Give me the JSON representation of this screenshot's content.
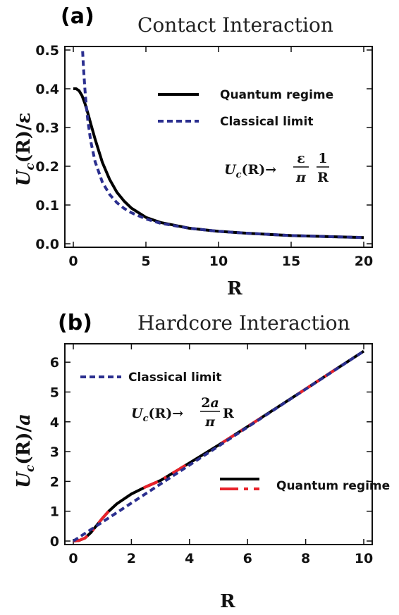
{
  "chart_data": [
    {
      "type": "line",
      "panel_label": "(a)",
      "title": "Contact Interaction",
      "xlabel": "R",
      "ylabel": "U_c(R)/ε",
      "xlim": [
        0,
        20
      ],
      "ylim": [
        0,
        0.5
      ],
      "xticks": [
        "0",
        "5",
        "10",
        "15",
        "20"
      ],
      "yticks": [
        "0.0",
        "0.1",
        "0.2",
        "0.3",
        "0.4",
        "0.5"
      ],
      "legend_position": "top-right",
      "annotation": "U_c(R) → (ε/π)(1/R)",
      "series": [
        {
          "name": "Quantum regime",
          "color": "#000000",
          "style": "solid",
          "x": [
            0,
            0.2,
            0.4,
            0.6,
            0.8,
            1.0,
            1.2,
            1.5,
            2.0,
            2.5,
            3.0,
            3.5,
            4.0,
            5.0,
            6.0,
            8.0,
            10.0,
            12.0,
            15.0,
            18.0,
            20.0
          ],
          "y": [
            0.4,
            0.4,
            0.395,
            0.382,
            0.362,
            0.337,
            0.31,
            0.27,
            0.21,
            0.166,
            0.133,
            0.11,
            0.092,
            0.068,
            0.055,
            0.04,
            0.032,
            0.027,
            0.021,
            0.018,
            0.016
          ]
        },
        {
          "name": "Classical limit",
          "color": "#2b2f8f",
          "style": "dashed",
          "x": [
            0.64,
            0.7,
            0.8,
            0.9,
            1.0,
            1.2,
            1.5,
            2.0,
            2.5,
            3.0,
            3.5,
            4.0,
            5.0,
            6.0,
            8.0,
            10.0,
            12.0,
            15.0,
            18.0,
            20.0
          ],
          "y": [
            0.497,
            0.455,
            0.398,
            0.354,
            0.318,
            0.265,
            0.212,
            0.159,
            0.127,
            0.106,
            0.091,
            0.08,
            0.064,
            0.053,
            0.04,
            0.032,
            0.027,
            0.021,
            0.018,
            0.016
          ]
        }
      ]
    },
    {
      "type": "line",
      "panel_label": "(b)",
      "title": "Hardcore Interaction",
      "xlabel": "R",
      "ylabel": "U_c(R)/a",
      "xlim": [
        0,
        10
      ],
      "ylim": [
        0,
        6.5
      ],
      "xticks": [
        "0",
        "2",
        "4",
        "6",
        "8",
        "10"
      ],
      "yticks": [
        "0",
        "1",
        "2",
        "3",
        "4",
        "5",
        "6"
      ],
      "legend_position": "right",
      "annotation": "U_c(R) → (2a/π) R",
      "series": [
        {
          "name": "Quantum regime",
          "color": "#000000",
          "style": "solid",
          "overlay_color": "#e8222a",
          "x": [
            0,
            0.2,
            0.4,
            0.6,
            0.8,
            1.0,
            1.2,
            1.5,
            2.0,
            2.5,
            3.0,
            4.0,
            5.0,
            6.0,
            7.0,
            8.0,
            9.0,
            10.0
          ],
          "y": [
            0.0,
            0.02,
            0.1,
            0.28,
            0.52,
            0.76,
            0.98,
            1.25,
            1.58,
            1.82,
            2.03,
            2.62,
            3.22,
            3.84,
            4.47,
            5.1,
            5.74,
            6.37
          ]
        },
        {
          "name": "Classical limit",
          "color": "#2b2f8f",
          "style": "dashed",
          "x": [
            0,
            10
          ],
          "y": [
            0,
            6.37
          ]
        }
      ]
    }
  ]
}
